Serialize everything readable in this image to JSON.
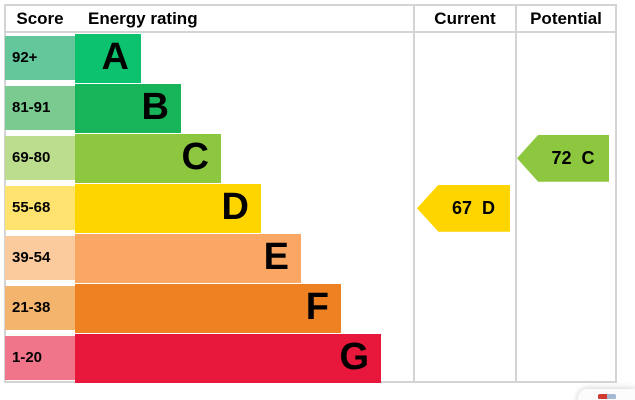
{
  "header": {
    "score": "Score",
    "energy_rating": "Energy rating",
    "current": "Current",
    "potential": "Potential"
  },
  "chart_data": {
    "type": "bar",
    "title": "EPC energy efficiency rating chart",
    "categories": [
      "A",
      "B",
      "C",
      "D",
      "E",
      "F",
      "G"
    ],
    "bands": [
      {
        "letter": "A",
        "score_range": "92+",
        "min": 92,
        "max": 100,
        "color": "#0cc26e",
        "tint": "#63c79b"
      },
      {
        "letter": "B",
        "score_range": "81-91",
        "min": 81,
        "max": 91,
        "color": "#17b459",
        "tint": "#7bcb90"
      },
      {
        "letter": "C",
        "score_range": "69-80",
        "min": 69,
        "max": 80,
        "color": "#8dc63f",
        "tint": "#bcdc8e"
      },
      {
        "letter": "D",
        "score_range": "55-68",
        "min": 55,
        "max": 68,
        "color": "#ffd500",
        "tint": "#ffe36e"
      },
      {
        "letter": "E",
        "score_range": "39-54",
        "min": 39,
        "max": 54,
        "color": "#faa764",
        "tint": "#fbca9d"
      },
      {
        "letter": "F",
        "score_range": "21-38",
        "min": 21,
        "max": 38,
        "color": "#ee8223",
        "tint": "#f3b46e"
      },
      {
        "letter": "G",
        "score_range": "1-20",
        "min": 1,
        "max": 20,
        "color": "#e8173c",
        "tint": "#f0758a"
      }
    ],
    "current": {
      "value": 67,
      "band": "D",
      "label": "67 D",
      "color": "#ffd500"
    },
    "potential": {
      "value": 72,
      "band": "C",
      "label": "72 C",
      "color": "#8dc63f"
    },
    "legend_position": "none",
    "grid": false
  }
}
